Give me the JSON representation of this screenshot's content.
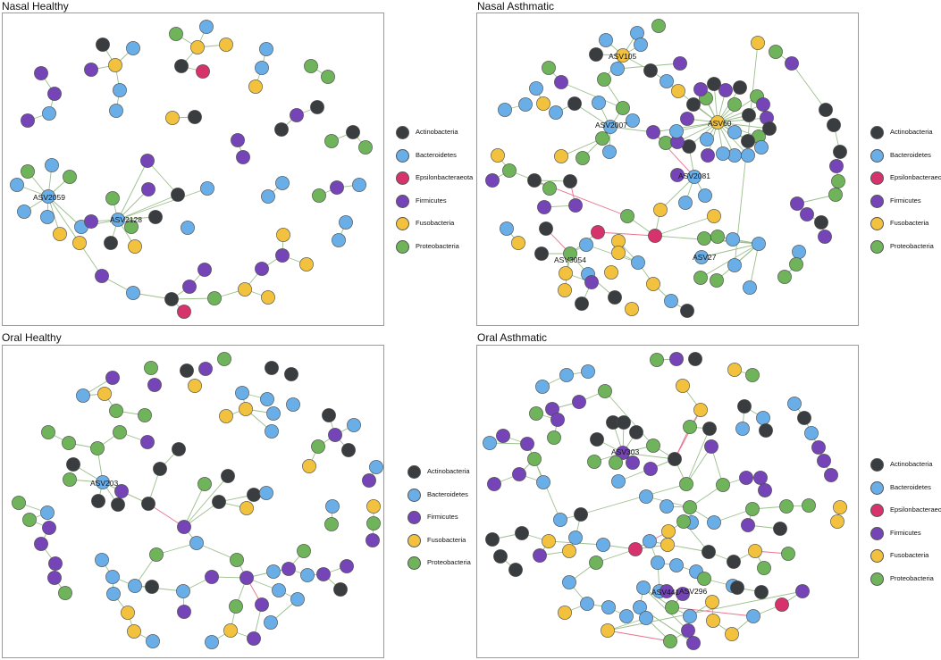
{
  "colors": {
    "Actinobacteria": "#3a3d40",
    "Bacteroidetes": "#6aaee8",
    "Epsilonbacteraeota": "#d6336c",
    "Firmicutes": "#7545b8",
    "Fusobacteria": "#f2c23e",
    "Proteobacteria": "#6fb35b",
    "edge_positive": "#9bbf8c",
    "edge_negative": "#e8738d"
  },
  "panels": {
    "nasal_healthy": {
      "title": "Nasal Healthy",
      "legend": [
        "Actinobacteria",
        "Bacteroidetes",
        "Epsilonbacteraeota",
        "Firmicutes",
        "Fusobacteria",
        "Proteobacteria"
      ],
      "hub_labels": [
        "ASV2059",
        "ASV2128"
      ]
    },
    "nasal_asthmatic": {
      "title": "Nasal Asthmatic",
      "legend": [
        "Actinobacteria",
        "Bacteroidetes",
        "Epsilonbacteraeota",
        "Firmicutes",
        "Fusobacteria",
        "Proteobacteria"
      ],
      "hub_labels": [
        "ASV105",
        "ASV2007",
        "ASV60",
        "ASV2081",
        "ASV3054",
        "ASV27"
      ]
    },
    "oral_healthy": {
      "title": "Oral Healthy",
      "legend": [
        "Actinobacteria",
        "Bacteroidetes",
        "Firmicutes",
        "Fusobacteria",
        "Proteobacteria"
      ],
      "hub_labels": [
        "ASV203"
      ]
    },
    "oral_asthmatic": {
      "title": "Oral Asthmatic",
      "legend": [
        "Actinobacteria",
        "Bacteroidetes",
        "Epsilonbacteraeota",
        "Firmicutes",
        "Fusobacteria",
        "Proteobacteria"
      ],
      "hub_labels": [
        "ASV303",
        "ASV441",
        "ASV296"
      ]
    }
  }
}
